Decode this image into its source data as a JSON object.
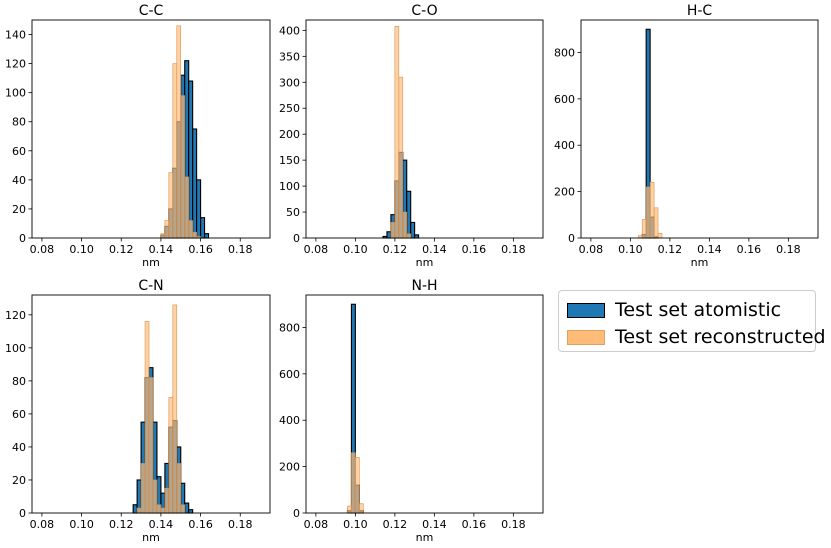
{
  "legend": {
    "items": [
      {
        "label": "Test set atomistic",
        "color": "#1f77b4",
        "edge": "#000000"
      },
      {
        "label": "Test set reconstructed",
        "color": "#ffbb78",
        "edge": "#e8a060"
      }
    ]
  },
  "chart_data": [
    {
      "type": "histogram",
      "title": "C-C",
      "xlabel": "nm",
      "xlim": [
        0.075,
        0.195
      ],
      "xticks": [
        "0.08",
        "0.10",
        "0.12",
        "0.14",
        "0.16",
        "0.18"
      ],
      "ylim": [
        0,
        150
      ],
      "yticks": [
        "0",
        "20",
        "40",
        "60",
        "80",
        "100",
        "120",
        "140"
      ],
      "bin_width": 0.002,
      "series": [
        {
          "name": "Test set atomistic",
          "color": "#1f77b4",
          "x": [
            0.14,
            0.142,
            0.144,
            0.146,
            0.148,
            0.15,
            0.152,
            0.154,
            0.156,
            0.158,
            0.16,
            0.162
          ],
          "y": [
            2,
            8,
            20,
            48,
            80,
            112,
            122,
            108,
            75,
            40,
            14,
            3
          ]
        },
        {
          "name": "Test set reconstructed",
          "color": "#ffbb78",
          "x": [
            0.14,
            0.142,
            0.144,
            0.146,
            0.148,
            0.15,
            0.152,
            0.154,
            0.156,
            0.158
          ],
          "y": [
            3,
            12,
            45,
            120,
            146,
            98,
            42,
            12,
            4,
            1
          ]
        }
      ]
    },
    {
      "type": "histogram",
      "title": "C-O",
      "xlabel": "nm",
      "xlim": [
        0.075,
        0.195
      ],
      "xticks": [
        "0.08",
        "0.10",
        "0.12",
        "0.14",
        "0.16",
        "0.18"
      ],
      "ylim": [
        0,
        420
      ],
      "yticks": [
        "0",
        "50",
        "100",
        "150",
        "200",
        "250",
        "300",
        "350",
        "400"
      ],
      "bin_width": 0.002,
      "series": [
        {
          "name": "Test set atomistic",
          "color": "#1f77b4",
          "x": [
            0.114,
            0.116,
            0.118,
            0.12,
            0.122,
            0.124,
            0.126,
            0.128,
            0.13
          ],
          "y": [
            3,
            12,
            45,
            110,
            165,
            150,
            90,
            30,
            6
          ]
        },
        {
          "name": "Test set reconstructed",
          "color": "#ffbb78",
          "x": [
            0.118,
            0.12,
            0.122,
            0.124,
            0.126
          ],
          "y": [
            30,
            408,
            310,
            50,
            8
          ]
        }
      ]
    },
    {
      "type": "histogram",
      "title": "H-C",
      "xlabel": "nm",
      "xlim": [
        0.075,
        0.195
      ],
      "xticks": [
        "0.08",
        "0.10",
        "0.12",
        "0.14",
        "0.16",
        "0.18"
      ],
      "ylim": [
        0,
        940
      ],
      "yticks": [
        "0",
        "200",
        "400",
        "600",
        "800"
      ],
      "bin_width": 0.002,
      "series": [
        {
          "name": "Test set atomistic",
          "color": "#1f77b4",
          "x": [
            0.106,
            0.108,
            0.11,
            0.112
          ],
          "y": [
            15,
            900,
            90,
            5
          ]
        },
        {
          "name": "Test set reconstructed",
          "color": "#ffbb78",
          "x": [
            0.104,
            0.106,
            0.108,
            0.11,
            0.112,
            0.114
          ],
          "y": [
            10,
            80,
            220,
            240,
            130,
            20
          ]
        }
      ]
    },
    {
      "type": "histogram",
      "title": "C-N",
      "xlabel": "nm",
      "xlim": [
        0.075,
        0.195
      ],
      "xticks": [
        "0.08",
        "0.10",
        "0.12",
        "0.14",
        "0.16",
        "0.18"
      ],
      "ylim": [
        0,
        132
      ],
      "yticks": [
        "0",
        "20",
        "40",
        "60",
        "80",
        "100",
        "120"
      ],
      "bin_width": 0.002,
      "series": [
        {
          "name": "Test set atomistic",
          "color": "#1f77b4",
          "x": [
            0.126,
            0.128,
            0.13,
            0.132,
            0.134,
            0.136,
            0.138,
            0.14,
            0.142,
            0.144,
            0.146,
            0.148,
            0.15,
            0.152,
            0.154
          ],
          "y": [
            5,
            20,
            55,
            82,
            88,
            55,
            22,
            12,
            30,
            52,
            56,
            40,
            18,
            6,
            2
          ]
        },
        {
          "name": "Test set reconstructed",
          "color": "#ffbb78",
          "x": [
            0.128,
            0.13,
            0.132,
            0.134,
            0.136,
            0.138,
            0.14,
            0.142,
            0.144,
            0.146,
            0.148,
            0.15
          ],
          "y": [
            3,
            30,
            116,
            82,
            20,
            5,
            3,
            15,
            70,
            126,
            30,
            5
          ]
        }
      ]
    },
    {
      "type": "histogram",
      "title": "N-H",
      "xlabel": "nm",
      "xlim": [
        0.075,
        0.195
      ],
      "xticks": [
        "0.08",
        "0.10",
        "0.12",
        "0.14",
        "0.16",
        "0.18"
      ],
      "ylim": [
        0,
        940
      ],
      "yticks": [
        "0",
        "200",
        "400",
        "600",
        "800"
      ],
      "bin_width": 0.002,
      "series": [
        {
          "name": "Test set atomistic",
          "color": "#1f77b4",
          "x": [
            0.096,
            0.098,
            0.1,
            0.102
          ],
          "y": [
            10,
            900,
            120,
            10
          ]
        },
        {
          "name": "Test set reconstructed",
          "color": "#ffbb78",
          "x": [
            0.096,
            0.098,
            0.1,
            0.102
          ],
          "y": [
            30,
            260,
            240,
            40
          ]
        }
      ]
    }
  ]
}
